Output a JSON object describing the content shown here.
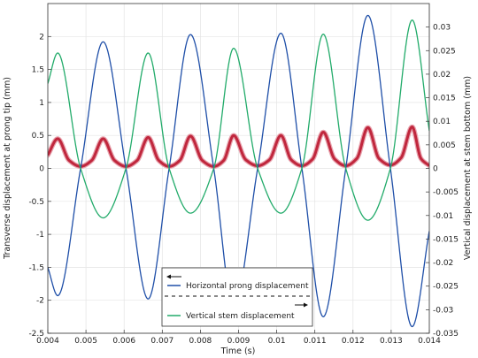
{
  "chart_data": {
    "type": "line",
    "title": "",
    "xlabel": "Time (s)",
    "ylabel_left": "Transverse displacement at prong tip (mm)",
    "ylabel_right": "Vertical displacement at stem bottom (mm)",
    "xlim": [
      0.004,
      0.014
    ],
    "ylim_left": [
      -2.5,
      2.5
    ],
    "ylim_right": [
      -0.035,
      0.035
    ],
    "x_ticks": [
      "0.004",
      "0.005",
      "0.006",
      "0.007",
      "0.008",
      "0.009",
      "0.01",
      "0.011",
      "0.012",
      "0.013",
      "0.014"
    ],
    "y_left_ticks": [
      "-2.5",
      "-2",
      "-1.5",
      "-1",
      "-0.5",
      "0",
      "0.5",
      "1",
      "1.5",
      "2"
    ],
    "y_right_ticks": [
      "-0.035",
      "-0.03",
      "-0.025",
      "-0.02",
      "-0.015",
      "-0.01",
      "-0.005",
      "0",
      "0.005",
      "0.01",
      "0.015",
      "0.02",
      "0.025",
      "0.03"
    ],
    "grid": true,
    "legend_position": "bottom-center",
    "series": [
      {
        "name": "Horizontal prong displacement",
        "axis": "left",
        "color": "#1f4fa8",
        "x": [
          0.004,
          0.00426,
          0.00486,
          0.00545,
          0.00605,
          0.00663,
          0.00718,
          0.00774,
          0.00835,
          0.00887,
          0.0095,
          0.01011,
          0.01066,
          0.01122,
          0.01181,
          0.01239,
          0.01298,
          0.01355,
          0.014
        ],
        "values": [
          -1.5,
          -1.93,
          0.0,
          1.92,
          0.0,
          -1.98,
          0.0,
          2.03,
          0.0,
          -2.12,
          0.0,
          2.05,
          0.0,
          -2.25,
          0.0,
          2.32,
          0.0,
          -2.4,
          -0.95
        ]
      },
      {
        "name": "Vertical stem displacement",
        "axis": "right",
        "color": "#22ab6a",
        "x": [
          0.004,
          0.00426,
          0.00486,
          0.00545,
          0.00605,
          0.00663,
          0.00718,
          0.00774,
          0.00835,
          0.00887,
          0.0095,
          0.01011,
          0.01066,
          0.01122,
          0.01181,
          0.01239,
          0.01298,
          0.01355,
          0.014
        ],
        "values": [
          0.018,
          0.0245,
          0.0,
          -0.0105,
          0.0,
          0.0245,
          0.0,
          -0.0095,
          0.0,
          0.0255,
          0.0,
          -0.0095,
          0.0,
          0.0285,
          0.0,
          -0.011,
          0.0,
          0.0315,
          0.008
        ]
      },
      {
        "name": "",
        "axis": "left",
        "color": "#c0273d",
        "x": [
          0.004,
          0.00426,
          0.00456,
          0.00486,
          0.00515,
          0.00545,
          0.00575,
          0.00605,
          0.00634,
          0.00663,
          0.00691,
          0.00718,
          0.00746,
          0.00774,
          0.00805,
          0.00835,
          0.00861,
          0.00887,
          0.00919,
          0.0095,
          0.00981,
          0.01011,
          0.01038,
          0.01066,
          0.01094,
          0.01122,
          0.01152,
          0.01181,
          0.0121,
          0.01239,
          0.01268,
          0.01298,
          0.01326,
          0.01355,
          0.01378,
          0.014
        ],
        "values": [
          0.2,
          0.45,
          0.12,
          0.03,
          0.12,
          0.45,
          0.12,
          0.03,
          0.12,
          0.47,
          0.12,
          0.03,
          0.12,
          0.49,
          0.12,
          0.03,
          0.12,
          0.5,
          0.13,
          0.04,
          0.13,
          0.5,
          0.13,
          0.04,
          0.14,
          0.55,
          0.14,
          0.04,
          0.15,
          0.62,
          0.15,
          0.05,
          0.16,
          0.63,
          0.15,
          0.04
        ]
      }
    ]
  },
  "legend": {
    "items": [
      {
        "label": "Horizontal prong displacement",
        "color": "#1f4fa8",
        "arrow": "left"
      },
      {
        "label": "Vertical stem displacement",
        "color": "#22ab6a",
        "arrow": "right"
      }
    ]
  }
}
